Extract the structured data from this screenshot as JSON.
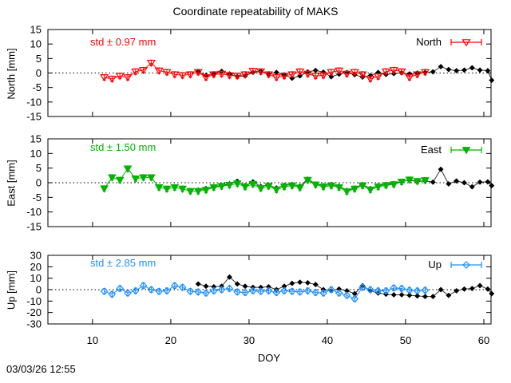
{
  "title": "Coordinate repeatability of MAKS",
  "timestamp": "03/03/26 12:55",
  "xaxis": {
    "label": "DOY",
    "ticks": [
      10,
      20,
      30,
      40,
      50,
      60
    ],
    "range": [
      4.3,
      60.92
    ]
  },
  "colors": {
    "north": "#ff0000",
    "east": "#00b400",
    "up": "#1e90ff",
    "reference": "#000000",
    "frame": "#000000"
  },
  "chart_data": [
    {
      "type": "line",
      "panel": "north",
      "ylabel": "North [mm]",
      "std_label": "std ± 0.97 mm",
      "legend": "North",
      "legend_position": "top-right",
      "ylim": [
        -15,
        15
      ],
      "yticks": [
        15,
        10,
        5,
        0,
        -5,
        -10,
        -15
      ],
      "zero_line": "dashed",
      "series": [
        {
          "name": "North",
          "color": "#ff0000",
          "marker": "open-triangle-down",
          "errorbars": true,
          "x": [
            11.5,
            12.5,
            13.5,
            14.5,
            15.5,
            16.5,
            17.5,
            18.5,
            19.5,
            20.5,
            21.5,
            22.5,
            23.5,
            24.5,
            25.5,
            26.5,
            27.5,
            28.5,
            29.5,
            30.5,
            31.5,
            32.5,
            33.5,
            34.5,
            35.5,
            36.5,
            37.5,
            38.5,
            39.5,
            40.5,
            41.5,
            42.5,
            43.5,
            44.5,
            45.5,
            46.5,
            47.5,
            48.5,
            49.5,
            50.5,
            51.5,
            52.5
          ],
          "y": [
            -1.5,
            -2.0,
            -1.0,
            -1.5,
            0.5,
            1.0,
            3.5,
            0.8,
            0.3,
            -0.5,
            -0.8,
            -0.5,
            0.3,
            -1.5,
            -0.5,
            -0.3,
            -0.8,
            -1.0,
            -0.5,
            0.7,
            0.5,
            -0.5,
            -1.5,
            -1.0,
            -0.5,
            0.5,
            -0.3,
            -1.0,
            -0.8,
            0.3,
            0.8,
            -0.3,
            0.3,
            -0.5,
            -2.0,
            -1.2,
            0.5,
            1.0,
            0.5,
            -1.5,
            -0.5,
            0.3
          ]
        },
        {
          "name": "reference",
          "color": "#000000",
          "marker": "filled-diamond",
          "errorbars": false,
          "x": [
            23.5,
            24.5,
            25.5,
            26.5,
            27.5,
            28.5,
            29.5,
            30.5,
            31.5,
            32.5,
            33.5,
            34.5,
            35.5,
            36.5,
            37.5,
            38.5,
            39.5,
            40.5,
            41.5,
            42.5,
            43.5,
            44.5,
            45.5,
            46.5,
            47.5,
            48.5,
            49.5,
            50.5,
            51.5,
            52.5,
            53.5,
            54.5,
            55.5,
            56.5,
            57.5,
            58.5,
            59.5,
            60.5,
            61
          ],
          "y": [
            0.5,
            -0.8,
            -0.3,
            0.6,
            -0.3,
            -1.2,
            -1.0,
            0.2,
            0.6,
            -0.4,
            0.2,
            -0.6,
            -1.8,
            -1.0,
            0.4,
            0.9,
            0.3,
            -1.3,
            -0.4,
            0.2,
            -0.6,
            -1.4,
            -0.9,
            0.2,
            -0.5,
            -0.2,
            0.1,
            -0.3,
            0.0,
            0.2,
            0.4,
            2.2,
            1.2,
            0.8,
            1.0,
            1.8,
            1.0,
            0.8,
            -2.5
          ]
        }
      ]
    },
    {
      "type": "line",
      "panel": "east",
      "ylabel": "East [mm]",
      "std_label": "std ± 1.50 mm",
      "legend": "East",
      "legend_position": "top-right",
      "ylim": [
        -15,
        15
      ],
      "yticks": [
        15,
        10,
        5,
        0,
        -5,
        -10,
        -15
      ],
      "zero_line": "dashed",
      "series": [
        {
          "name": "East",
          "color": "#00b400",
          "marker": "filled-triangle-down",
          "errorbars": true,
          "x": [
            11.5,
            12.5,
            13.5,
            14.5,
            15.5,
            16.5,
            17.5,
            18.5,
            19.5,
            20.5,
            21.5,
            22.5,
            23.5,
            24.5,
            25.5,
            26.5,
            27.5,
            28.5,
            29.5,
            30.5,
            31.5,
            32.5,
            33.5,
            34.5,
            35.5,
            36.5,
            37.5,
            38.5,
            39.5,
            40.5,
            41.5,
            42.5,
            43.5,
            44.5,
            45.5,
            46.5,
            47.5,
            48.5,
            49.5,
            50.5,
            51.5,
            52.5
          ],
          "y": [
            -2.0,
            1.8,
            0.9,
            4.8,
            1.4,
            1.8,
            1.8,
            -1.6,
            -2.1,
            -1.6,
            -2.1,
            -2.9,
            -2.9,
            -2.5,
            -1.6,
            -1.2,
            -0.8,
            -0.3,
            -1.4,
            -0.5,
            -1.9,
            -1.2,
            -2.4,
            -1.4,
            -1.0,
            -1.7,
            0.9,
            -0.7,
            -1.4,
            -1.0,
            -1.6,
            -3.0,
            -2.1,
            -1.0,
            -2.4,
            -1.4,
            -0.9,
            -0.6,
            0.3,
            1.0,
            0.5,
            0.8
          ]
        },
        {
          "name": "reference",
          "color": "#000000",
          "marker": "filled-diamond",
          "errorbars": false,
          "x": [
            23.5,
            24.5,
            25.5,
            26.5,
            27.5,
            28.5,
            29.5,
            30.5,
            31.5,
            32.5,
            33.5,
            34.5,
            35.5,
            36.5,
            37.5,
            38.5,
            39.5,
            40.5,
            41.5,
            42.5,
            43.5,
            44.5,
            45.5,
            46.5,
            47.5,
            48.5,
            49.5,
            50.5,
            51.5,
            52.5,
            53.5,
            54.5,
            55.5,
            56.5,
            57.5,
            58.5,
            59.5,
            60.5,
            61
          ],
          "y": [
            -2.5,
            -2.0,
            -1.3,
            -1.0,
            -0.4,
            0.5,
            -1.0,
            0.3,
            -1.3,
            -0.8,
            -1.8,
            -0.9,
            -0.6,
            -1.2,
            1.2,
            -0.4,
            -1.0,
            -0.6,
            -1.2,
            -2.6,
            -1.8,
            -0.6,
            -2.0,
            -1.0,
            -0.6,
            -0.3,
            0.4,
            0.8,
            0.4,
            0.6,
            0.2,
            4.6,
            -0.4,
            0.6,
            0.0,
            -1.4,
            0.2,
            0.3,
            -1.0
          ]
        }
      ]
    },
    {
      "type": "line",
      "panel": "up",
      "ylabel": "Up [mm]",
      "std_label": "std ± 2.85 mm",
      "legend": "Up",
      "legend_position": "top-right",
      "ylim": [
        -30,
        30
      ],
      "yticks": [
        30,
        20,
        10,
        0,
        -10,
        -20,
        -30
      ],
      "zero_line": "dashed",
      "series": [
        {
          "name": "Up",
          "color": "#1e90ff",
          "marker": "open-diamond",
          "errorbars": true,
          "x": [
            11.5,
            12.5,
            13.5,
            14.5,
            15.5,
            16.5,
            17.5,
            18.5,
            19.5,
            20.5,
            21.5,
            22.5,
            23.5,
            24.5,
            25.5,
            26.5,
            27.5,
            28.5,
            29.5,
            30.5,
            31.5,
            32.5,
            33.5,
            34.5,
            35.5,
            36.5,
            37.5,
            38.5,
            39.5,
            40.5,
            41.5,
            42.5,
            43.5,
            44.5,
            45.5,
            46.5,
            47.5,
            48.5,
            49.5,
            50.5,
            51.5,
            52.5
          ],
          "y": [
            -1.5,
            -4.0,
            1.0,
            -3.0,
            -1.0,
            3.5,
            0.0,
            -1.5,
            -1.0,
            3.5,
            2.0,
            -1.5,
            -2.0,
            -3.0,
            -1.0,
            0.0,
            1.0,
            -2.0,
            -2.5,
            -1.0,
            -1.5,
            -1.0,
            -2.5,
            -1.0,
            -1.5,
            -2.0,
            -1.0,
            -2.5,
            -3.0,
            0.0,
            -3.0,
            -5.0,
            -8.0,
            2.0,
            0.0,
            -1.0,
            -1.0,
            1.5,
            1.0,
            -0.5,
            -1.0,
            -0.5
          ]
        },
        {
          "name": "reference",
          "color": "#000000",
          "marker": "filled-diamond",
          "errorbars": false,
          "x": [
            23.5,
            24.5,
            25.5,
            26.5,
            27.5,
            28.5,
            29.5,
            30.5,
            31.5,
            32.5,
            33.5,
            34.5,
            35.5,
            36.5,
            37.5,
            38.5,
            39.5,
            40.5,
            41.5,
            42.5,
            43.5,
            44.5,
            45.5,
            46.5,
            47.5,
            48.5,
            49.5,
            50.5,
            51.5,
            52.5,
            53.5,
            54.5,
            55.5,
            56.5,
            57.5,
            58.5,
            59.5,
            60.5,
            61
          ],
          "y": [
            5.0,
            3.0,
            2.5,
            3.0,
            11.0,
            5.0,
            3.0,
            2.0,
            2.0,
            2.5,
            0.0,
            3.0,
            5.5,
            6.5,
            6.0,
            4.5,
            0.0,
            -1.0,
            0.5,
            -1.0,
            -3.5,
            3.5,
            -1.0,
            -3.0,
            -4.0,
            -4.5,
            -4.5,
            -5.0,
            -5.5,
            -6.0,
            -6.0,
            0.0,
            -5.0,
            -1.0,
            0.5,
            1.0,
            3.5,
            0.5,
            -3.5
          ]
        }
      ]
    }
  ]
}
